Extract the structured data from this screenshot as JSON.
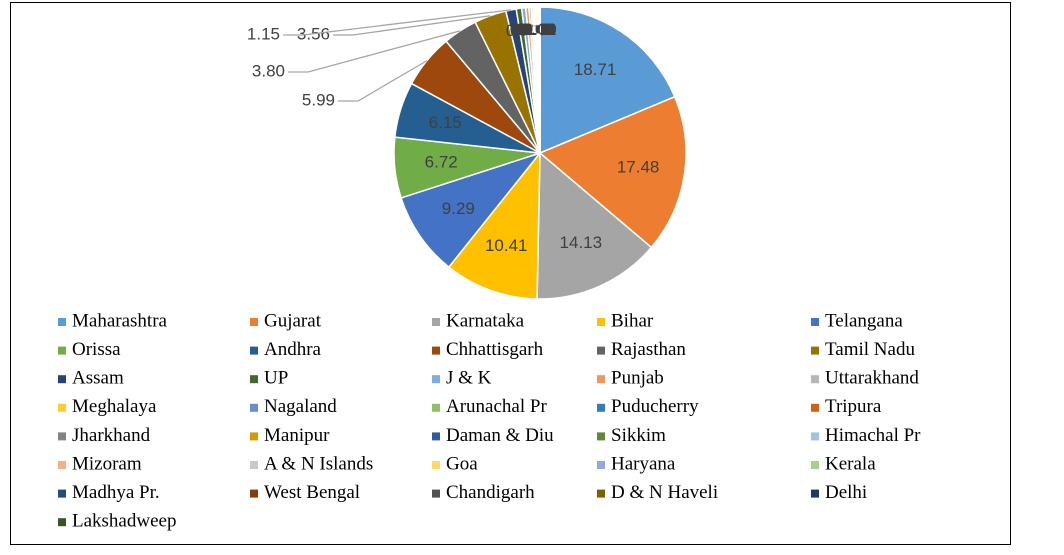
{
  "chart_data": {
    "type": "pie",
    "categories": [
      "Maharashtra",
      "Gujarat",
      "Karnataka",
      "Bihar",
      "Telangana",
      "Orissa",
      "Andhra",
      "Chhattisgarh",
      "Rajasthan",
      "Tamil Nadu",
      "Assam",
      "UP",
      "J & K",
      "Punjab",
      "Uttarakhand",
      "Meghalaya",
      "Nagaland",
      "Arunachal Pr",
      "Puducherry",
      "Tripura",
      "Jharkhand",
      "Manipur",
      "Daman & Diu",
      "Sikkim",
      "Himachal Pr",
      "Mizoram",
      "A & N Islands",
      "Goa",
      "Haryana",
      "Kerala",
      "Madhya Pr.",
      "West Bengal",
      "Chandigarh",
      "D & N Haveli",
      "Delhi",
      "Lakshadweep"
    ],
    "values": [
      18.71,
      17.48,
      14.13,
      10.41,
      9.29,
      6.72,
      6.15,
      5.99,
      3.8,
      3.56,
      1.15,
      0.6,
      0.45,
      0.35,
      0.25,
      0.2,
      0.15,
      0.12,
      0.1,
      0.08,
      0.07,
      0.05,
      0.04,
      0.03,
      0.03,
      0.02,
      0.02,
      0.01,
      0.01,
      0.01,
      0.02,
      0.0,
      0.0,
      0.0,
      0.0,
      0.0
    ],
    "value_labels": [
      "18.71",
      "17.48",
      "14.13",
      "10.41",
      "9.29",
      "6.72",
      "6.15",
      "5.99",
      "3.80",
      "3.56",
      "1.15",
      "0.60",
      "0.45",
      "0.35",
      "0.25",
      "0.20",
      "0.15",
      "0.12",
      "0.10",
      "0.08",
      "0.07",
      "0.05",
      "0.04",
      "0.03",
      "0.03",
      "0.02",
      "0.02",
      "0.01",
      "0.01",
      "0.01",
      "0.02",
      "0.00",
      "0.00",
      "0.00",
      "0.00",
      "0.00"
    ],
    "colors": [
      "#5b9bd5",
      "#ed7d31",
      "#a5a5a5",
      "#ffc000",
      "#4472c4",
      "#70ad47",
      "#255e91",
      "#9e480e",
      "#636363",
      "#997300",
      "#264478",
      "#43682b",
      "#7cafdd",
      "#f1975a",
      "#b7b7b7",
      "#ffcd33",
      "#698ed0",
      "#8cc168",
      "#327dc2",
      "#d26012",
      "#848484",
      "#d09b00",
      "#335aa1",
      "#5a8a39",
      "#9dc3e6",
      "#f4b183",
      "#c9c9c9",
      "#ffd966",
      "#8faadc",
      "#a9d18e",
      "#1f4e79",
      "#843c0c",
      "#525252",
      "#7f6000",
      "#203864",
      "#375623"
    ],
    "legend": "bottom"
  }
}
